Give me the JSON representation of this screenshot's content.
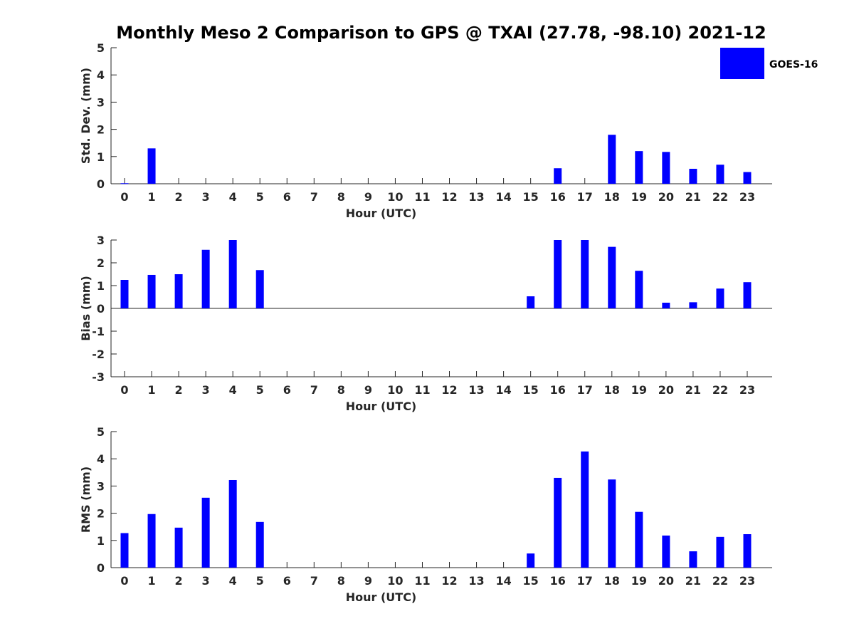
{
  "title": "Monthly Meso 2 Comparison to GPS @ TXAI (27.78, -98.10) 2021-12",
  "legend": {
    "label": "GOES-16",
    "color": "#0000ff",
    "placement": "top-right"
  },
  "bar_color": "#0000ff",
  "chart_data": [
    {
      "type": "bar",
      "ylabel": "Std. Dev. (mm)",
      "xlabel": "Hour (UTC)",
      "ylim": [
        0,
        5
      ],
      "yticks": [
        "0",
        "1",
        "2",
        "3",
        "4",
        "5"
      ],
      "categories": [
        "0",
        "1",
        "2",
        "3",
        "4",
        "5",
        "6",
        "7",
        "8",
        "9",
        "10",
        "11",
        "12",
        "13",
        "14",
        "15",
        "16",
        "17",
        "18",
        "19",
        "20",
        "21",
        "22",
        "23"
      ],
      "series": [
        {
          "name": "GOES-16",
          "values": [
            0.02,
            1.3,
            0,
            0,
            0,
            0,
            0,
            0,
            0,
            0,
            0,
            0,
            0,
            0,
            0,
            0,
            0.57,
            0,
            1.8,
            1.2,
            1.17,
            0.55,
            0.7,
            0.43
          ]
        }
      ]
    },
    {
      "type": "bar",
      "ylabel": "Bias (mm)",
      "xlabel": "Hour (UTC)",
      "ylim": [
        -3,
        3
      ],
      "yticks": [
        "-3",
        "-2",
        "-1",
        "0",
        "1",
        "2",
        "3"
      ],
      "categories": [
        "0",
        "1",
        "2",
        "3",
        "4",
        "5",
        "6",
        "7",
        "8",
        "9",
        "10",
        "11",
        "12",
        "13",
        "14",
        "15",
        "16",
        "17",
        "18",
        "19",
        "20",
        "21",
        "22",
        "23"
      ],
      "series": [
        {
          "name": "GOES-16",
          "values": [
            1.25,
            1.47,
            1.5,
            2.57,
            3.0,
            1.68,
            0,
            0,
            0,
            0,
            0,
            0,
            0,
            0,
            0,
            0.53,
            3.0,
            3.0,
            2.7,
            1.65,
            0.25,
            0.27,
            0.87,
            1.15
          ]
        }
      ]
    },
    {
      "type": "bar",
      "ylabel": "RMS (mm)",
      "xlabel": "Hour (UTC)",
      "ylim": [
        0,
        5
      ],
      "yticks": [
        "0",
        "1",
        "2",
        "3",
        "4",
        "5"
      ],
      "categories": [
        "0",
        "1",
        "2",
        "3",
        "4",
        "5",
        "6",
        "7",
        "8",
        "9",
        "10",
        "11",
        "12",
        "13",
        "14",
        "15",
        "16",
        "17",
        "18",
        "19",
        "20",
        "21",
        "22",
        "23"
      ],
      "series": [
        {
          "name": "GOES-16",
          "values": [
            1.27,
            1.97,
            1.47,
            2.57,
            3.22,
            1.68,
            0,
            0,
            0,
            0,
            0,
            0,
            0,
            0,
            0,
            0.52,
            3.3,
            4.27,
            3.24,
            2.05,
            1.18,
            0.6,
            1.13,
            1.23
          ]
        }
      ]
    }
  ]
}
